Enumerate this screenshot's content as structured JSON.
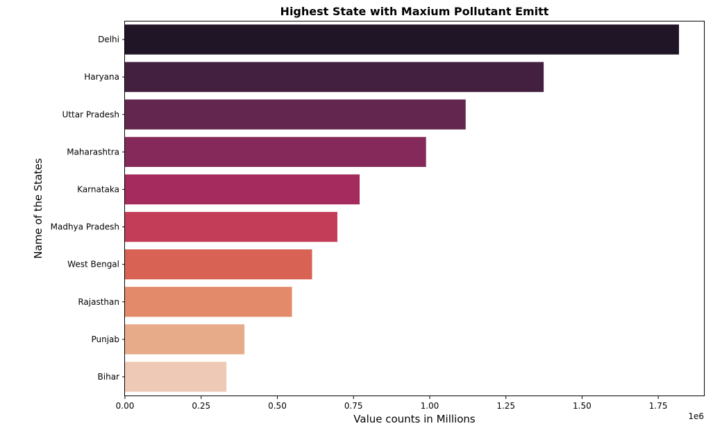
{
  "chart_data": {
    "type": "bar",
    "orientation": "horizontal",
    "title": "Highest State with Maxium Pollutant Emitt",
    "xlabel": "Value counts in Millions",
    "ylabel": "Name of the States",
    "x_offset_label": "1e6",
    "xlim": [
      0,
      1.9
    ],
    "x_ticks": [
      0.0,
      0.25,
      0.5,
      0.75,
      1.0,
      1.25,
      1.5,
      1.75
    ],
    "x_tick_labels": [
      "0.00",
      "0.25",
      "0.50",
      "0.75",
      "1.00",
      "1.25",
      "1.50",
      "1.75"
    ],
    "grid": false,
    "categories": [
      "Delhi",
      "Haryana",
      "Uttar Pradesh",
      "Maharashtra",
      "Karnataka",
      "Madhya Pradesh",
      "West Bengal",
      "Rajasthan",
      "Punjab",
      "Bihar"
    ],
    "values": [
      1.818,
      1.374,
      1.118,
      0.988,
      0.77,
      0.697,
      0.614,
      0.548,
      0.392,
      0.333
    ],
    "colors": [
      "#201527",
      "#432040",
      "#62264f",
      "#84295a",
      "#a52a5d",
      "#c43d58",
      "#d86254",
      "#e38a6a",
      "#e8ab89",
      "#eec9b5"
    ]
  }
}
